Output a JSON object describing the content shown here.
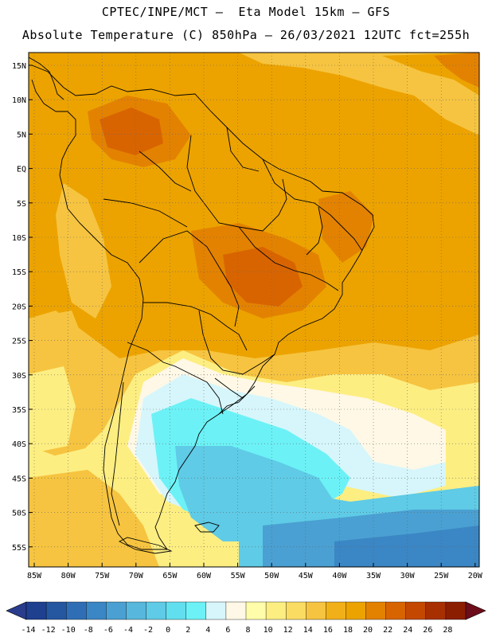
{
  "title": {
    "line1": "CPTEC/INPE/MCT –  Eta Model 15km – GFS",
    "line2": "Absolute Temperature (C) 850hPa – 26/03/2021 12UTC fct=255h"
  },
  "axes": {
    "lat_labels": [
      "15N",
      "10N",
      "5N",
      "EQ",
      "5S",
      "10S",
      "15S",
      "20S",
      "25S",
      "30S",
      "35S",
      "40S",
      "45S",
      "50S",
      "55S"
    ],
    "lon_labels": [
      "85W",
      "80W",
      "75W",
      "70W",
      "65W",
      "60W",
      "55W",
      "50W",
      "45W",
      "40W",
      "35W",
      "30W",
      "25W",
      "20W"
    ]
  },
  "colorbar": {
    "labels": [
      "-14",
      "-12",
      "-10",
      "-8",
      "-6",
      "-4",
      "-2",
      "0",
      "2",
      "4",
      "6",
      "8",
      "10",
      "12",
      "14",
      "16",
      "18",
      "20",
      "22",
      "24",
      "26",
      "28"
    ],
    "colors": [
      "#1f3f8f",
      "#2556a0",
      "#2f6eb4",
      "#3b86c4",
      "#4aa0d2",
      "#57b7dc",
      "#5fcbe6",
      "#62dfee",
      "#6cf2f6",
      "#d6f6fb",
      "#fff8e6",
      "#fffcaa",
      "#fdee82",
      "#fbdc62",
      "#f6c440",
      "#f2b018",
      "#eca300",
      "#e38200",
      "#d86400",
      "#c44800",
      "#a82f00",
      "#8c1e00"
    ],
    "end_low": "#2a3c8c",
    "end_high": "#6e0d1a"
  },
  "map": {
    "field_colors": {
      "warm": "#eca300",
      "hot": "#e38200",
      "hotter": "#d86400",
      "mild": "#f6c440",
      "mild2": "#fbdc62",
      "cool": "#fdee82",
      "pale": "#fff8e6",
      "icy": "#d6f6fb",
      "cyan": "#6cf2f6",
      "cyan2": "#62dfee",
      "blue1": "#5fcbe6",
      "blue2": "#4aa0d2",
      "blue3": "#3b86c4",
      "blue4": "#2f6eb4"
    }
  }
}
